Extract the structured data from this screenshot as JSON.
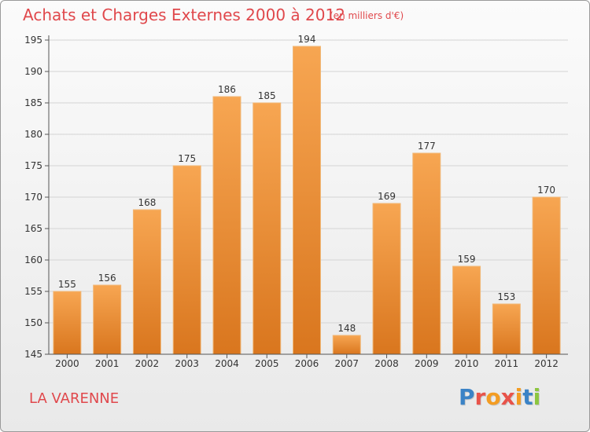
{
  "header": {
    "title": "Achats et Charges Externes 2000 à 2012",
    "subtitle": "(en milliers d'€)"
  },
  "footer": {
    "location": "LA VARENNE",
    "logo_text": "Proxiti",
    "logo_colors": [
      "#3b83c6",
      "#e8534a",
      "#f39c22",
      "#e8534a",
      "#f39c22",
      "#3b83c6",
      "#8cc63f"
    ]
  },
  "colors": {
    "bar_top": "#f7a652",
    "bar_bottom": "#d9761e",
    "text_red": "#e0484c"
  },
  "chart_data": {
    "type": "bar",
    "title": "Achats et Charges Externes 2000 à 2012",
    "subtitle": "(en milliers d'€)",
    "categories": [
      "2000",
      "2001",
      "2002",
      "2003",
      "2004",
      "2005",
      "2006",
      "2007",
      "2008",
      "2009",
      "2010",
      "2011",
      "2012"
    ],
    "values": [
      155,
      156,
      168,
      175,
      186,
      185,
      194,
      148,
      169,
      177,
      159,
      153,
      170
    ],
    "ylim": [
      145,
      195
    ],
    "yticks": [
      145,
      150,
      155,
      160,
      165,
      170,
      175,
      180,
      185,
      190,
      195
    ],
    "grid": true,
    "data_labels": true
  }
}
